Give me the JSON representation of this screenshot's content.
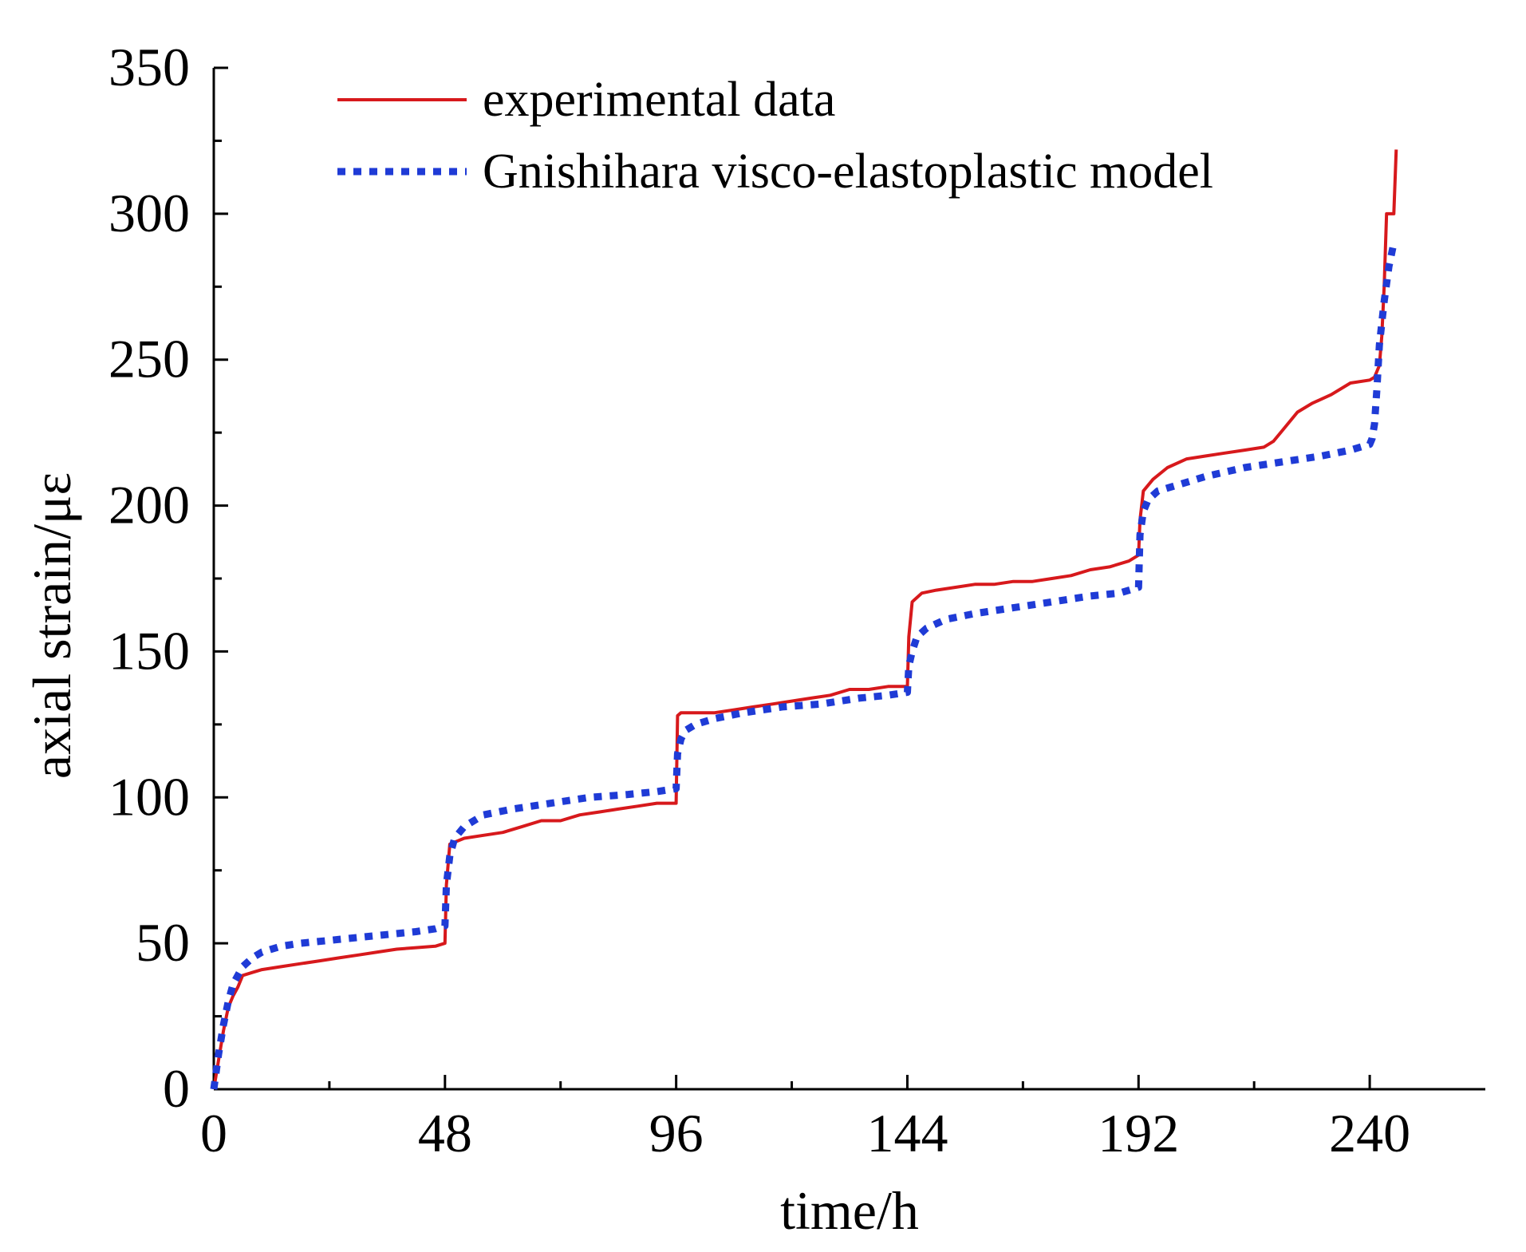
{
  "chart_data": {
    "type": "line",
    "title": "",
    "xlabel": "time/h",
    "ylabel": "axial strain/με",
    "xlim": [
      0,
      264
    ],
    "ylim": [
      0,
      350
    ],
    "xticks": [
      0,
      48,
      96,
      144,
      192,
      240
    ],
    "xtick_labels": [
      "0",
      "48",
      "96",
      "144",
      "192",
      "240"
    ],
    "yticks": [
      0,
      50,
      100,
      150,
      200,
      250,
      300,
      350
    ],
    "ytick_labels": [
      "0",
      "50",
      "100",
      "150",
      "200",
      "250",
      "300",
      "350"
    ],
    "grid": false,
    "legend_position": "top",
    "series": [
      {
        "name": "experimental data",
        "color": "#d7191c",
        "style": "solid",
        "x": [
          0,
          1,
          2,
          3,
          4,
          5,
          6,
          8,
          10,
          14,
          18,
          22,
          26,
          30,
          34,
          38,
          42,
          46,
          48,
          48.3,
          49,
          52,
          56,
          60,
          64,
          68,
          72,
          76,
          80,
          84,
          88,
          92,
          96,
          96.3,
          97,
          100,
          104,
          108,
          112,
          116,
          120,
          124,
          128,
          132,
          136,
          140,
          144,
          144.3,
          145,
          147,
          150,
          154,
          158,
          162,
          166,
          170,
          174,
          178,
          182,
          186,
          190,
          192,
          192.3,
          193,
          195,
          198,
          202,
          206,
          210,
          214,
          218,
          220,
          222,
          225,
          228,
          232,
          236,
          240,
          241,
          242,
          242.5,
          243,
          243.5,
          244,
          245,
          245.5
        ],
        "y": [
          0,
          10,
          20,
          28,
          32,
          35,
          39,
          40,
          41,
          42,
          43,
          44,
          45,
          46,
          47,
          48,
          48.5,
          49,
          50,
          70,
          84,
          86,
          87,
          88,
          90,
          92,
          92,
          94,
          95,
          96,
          97,
          98,
          98,
          128,
          129,
          129,
          129,
          130,
          131,
          132,
          133,
          134,
          135,
          137,
          137,
          138,
          138,
          155,
          167,
          170,
          171,
          172,
          173,
          173,
          174,
          174,
          175,
          176,
          178,
          179,
          181,
          183,
          195,
          205,
          209,
          213,
          216,
          217,
          218,
          219,
          220,
          222,
          226,
          232,
          235,
          238,
          242,
          243,
          244,
          248,
          258,
          275,
          300,
          300,
          300,
          322
        ]
      },
      {
        "name": "Gnishihara visco-elastoplastic model",
        "color": "#1f3bd6",
        "style": "dotted",
        "x": [
          0,
          1,
          2,
          3,
          4,
          6,
          8,
          10,
          14,
          18,
          24,
          30,
          36,
          42,
          46,
          48,
          48.3,
          49,
          50,
          52,
          56,
          62,
          70,
          78,
          86,
          92,
          96,
          96.3,
          97,
          98,
          100,
          104,
          110,
          118,
          126,
          134,
          140,
          144,
          144.3,
          145,
          146,
          148,
          152,
          158,
          166,
          174,
          182,
          188,
          192,
          192.3,
          193,
          194,
          196,
          200,
          206,
          214,
          222,
          230,
          236,
          240,
          240.5,
          241,
          241.5,
          242,
          243,
          244,
          245
        ],
        "y": [
          0,
          12,
          22,
          30,
          36,
          42,
          45,
          47,
          49,
          50,
          51,
          52,
          53,
          54,
          55,
          56,
          70,
          80,
          86,
          90,
          94,
          96,
          98,
          100,
          101,
          102,
          103,
          115,
          120,
          123,
          125,
          127,
          129,
          131,
          132,
          134,
          135,
          136,
          145,
          150,
          155,
          158,
          161,
          163,
          165,
          167,
          169,
          170,
          172,
          190,
          198,
          202,
          205,
          207,
          210,
          213,
          215,
          217,
          219,
          221,
          223,
          228,
          240,
          255,
          270,
          282,
          290
        ]
      }
    ]
  }
}
